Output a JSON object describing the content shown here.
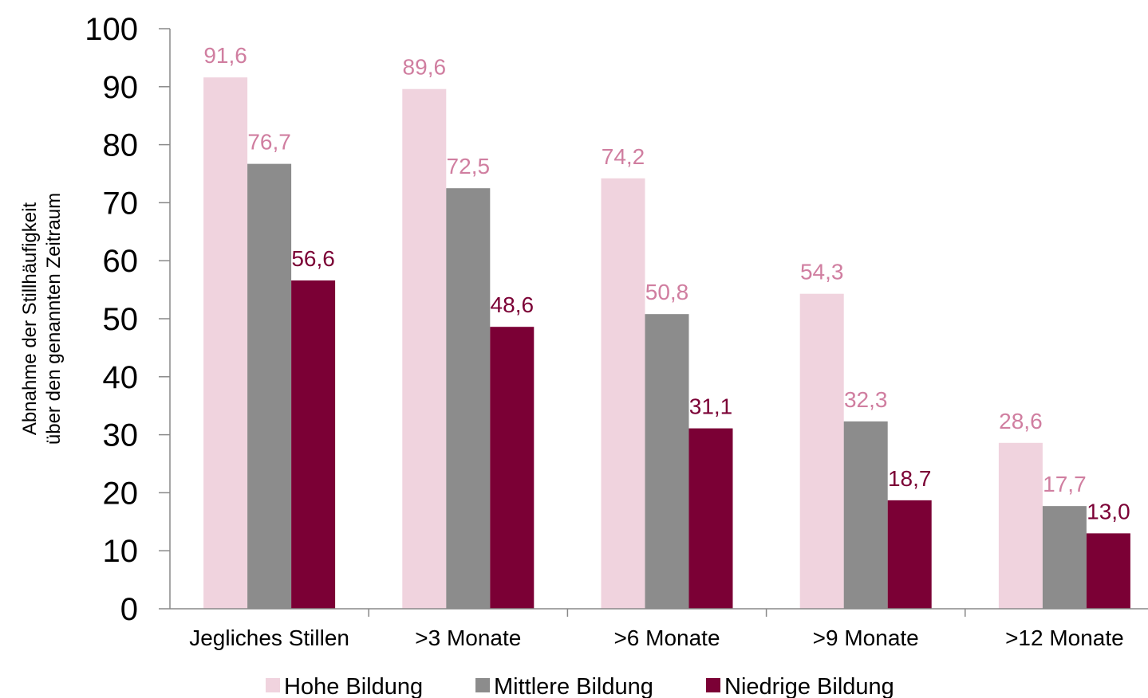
{
  "chart_data": {
    "type": "bar",
    "categories": [
      "Jegliches Stillen",
      ">3 Monate",
      ">6 Monate",
      ">9 Monate",
      ">12 Monate"
    ],
    "series": [
      {
        "name": "Hohe Bildung",
        "values": [
          91.6,
          89.6,
          74.2,
          54.3,
          28.6
        ],
        "labels": [
          "91,6",
          "89,6",
          "74,2",
          "54,3",
          "28,6"
        ],
        "color": "#f0d3de",
        "label_color": "#d07ea0"
      },
      {
        "name": "Mittlere Bildung",
        "values": [
          76.7,
          72.5,
          50.8,
          32.3,
          17.7
        ],
        "labels": [
          "76,7",
          "72,5",
          "50,8",
          "32,3",
          "17,7"
        ],
        "color": "#8c8c8c",
        "label_color": "#d07ea0"
      },
      {
        "name": "Niedrige Bildung",
        "values": [
          56.6,
          48.6,
          31.1,
          18.7,
          13.0
        ],
        "labels": [
          "56,6",
          "48,6",
          "31,1",
          "18,7",
          "13,0"
        ],
        "color": "#7b0035",
        "label_color": "#7b0035"
      }
    ],
    "ylabel_lines": [
      "Abnahme der Stillhäufigkeit",
      "über den genannten Zeitraum"
    ],
    "ylim": [
      0,
      100
    ],
    "yticks": [
      "0",
      "10",
      "20",
      "30",
      "40",
      "50",
      "60",
      "70",
      "80",
      "90",
      "100"
    ],
    "grid": false,
    "legend_position": "bottom"
  }
}
